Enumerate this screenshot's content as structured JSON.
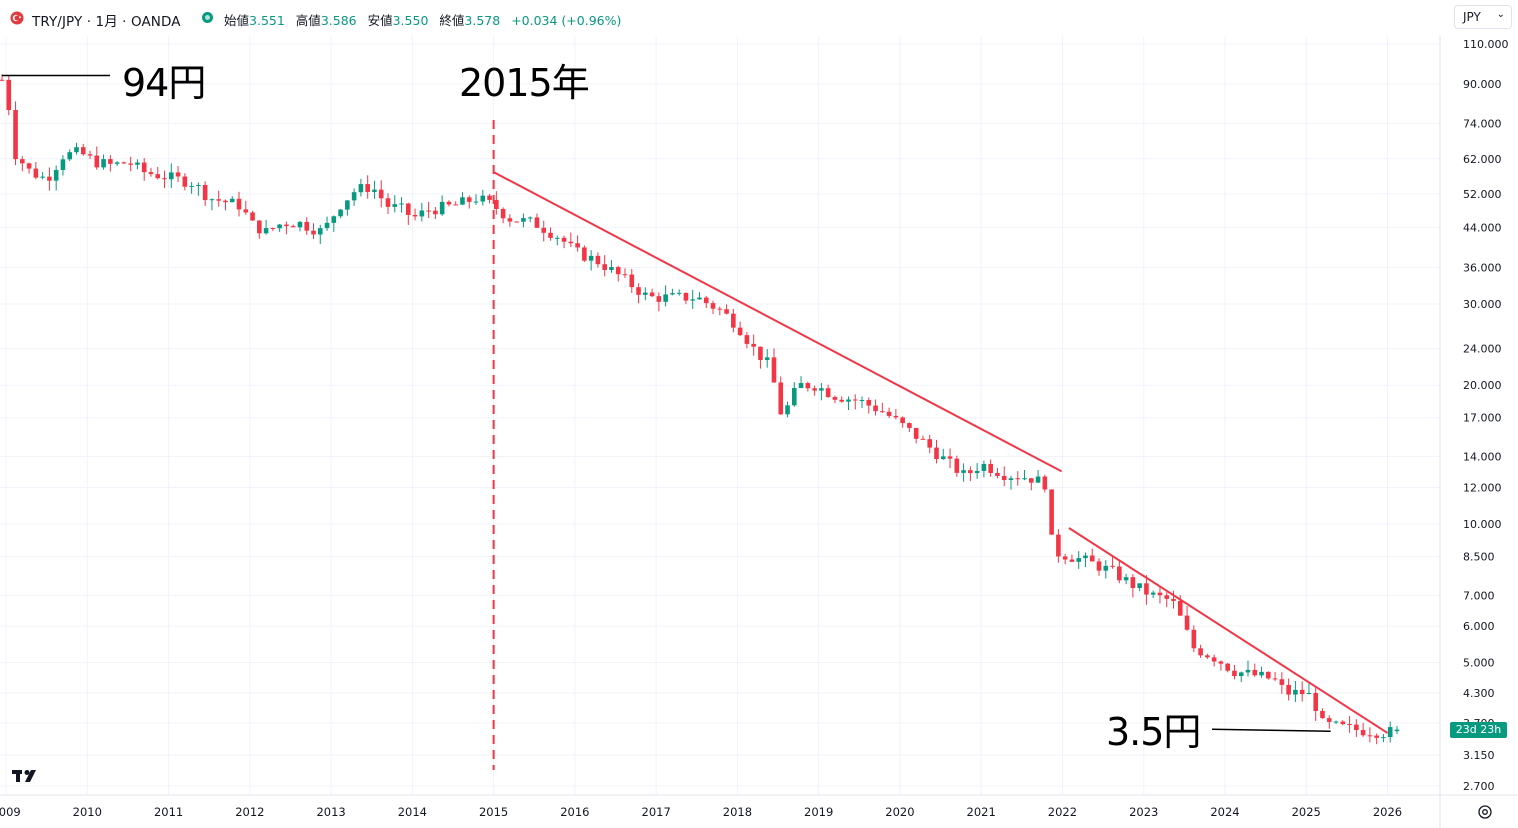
{
  "header": {
    "symbol_title": "TRY/JPY · 1月 · OANDA",
    "ohlc": [
      {
        "label": "始値",
        "value": "3.551"
      },
      {
        "label": "高値",
        "value": "3.586"
      },
      {
        "label": "安値",
        "value": "3.550"
      },
      {
        "label": "終値",
        "value": "3.578"
      },
      {
        "label": "",
        "value": "+0.034 (+0.96%)"
      }
    ]
  },
  "currency_select": {
    "value": "JPY",
    "chevron_icon": "chevron-down-icon"
  },
  "price_tag": "23d 23h",
  "annotations": {
    "start_price": "94円",
    "year_marker": "2015年",
    "end_price": "3.5円"
  },
  "colors": {
    "up": "#089981",
    "down": "#f23645",
    "trendline": "#f23645",
    "grid": "#f0f3fa",
    "axis_text": "#131722"
  },
  "chart_data": {
    "type": "candlestick",
    "title": "TRY/JPY · 1月 · OANDA",
    "y_scale": "log",
    "ylim": [
      2.4,
      120
    ],
    "xlim": [
      2008.95,
      2026.4
    ],
    "y_ticks": [
      "110.000",
      "90.000",
      "74.000",
      "62.000",
      "52.000",
      "44.000",
      "36.000",
      "30.000",
      "24.000",
      "20.000",
      "17.000",
      "14.000",
      "12.000",
      "10.000",
      "8.500",
      "7.000",
      "6.000",
      "5.000",
      "4.300",
      "3.700",
      "3.150",
      "2.700"
    ],
    "x_ticks": [
      "2009",
      "2010",
      "2011",
      "2012",
      "2013",
      "2014",
      "2015",
      "2016",
      "2017",
      "2018",
      "2019",
      "2020",
      "2021",
      "2022",
      "2023",
      "2024",
      "2025",
      "2026"
    ],
    "anchors": [
      [
        2008.95,
        92
      ],
      [
        2009.0,
        90
      ],
      [
        2009.1,
        64
      ],
      [
        2009.3,
        58
      ],
      [
        2009.5,
        56
      ],
      [
        2009.7,
        63
      ],
      [
        2009.9,
        64
      ],
      [
        2010.1,
        61
      ],
      [
        2010.3,
        60
      ],
      [
        2010.5,
        61
      ],
      [
        2010.7,
        58
      ],
      [
        2010.9,
        57
      ],
      [
        2011.1,
        56
      ],
      [
        2011.3,
        55
      ],
      [
        2011.5,
        51
      ],
      [
        2011.7,
        50
      ],
      [
        2011.9,
        49
      ],
      [
        2012.0,
        45
      ],
      [
        2012.2,
        43
      ],
      [
        2012.4,
        45
      ],
      [
        2012.6,
        45
      ],
      [
        2012.9,
        43
      ],
      [
        2013.1,
        49
      ],
      [
        2013.3,
        53
      ],
      [
        2013.5,
        54
      ],
      [
        2013.7,
        49
      ],
      [
        2013.9,
        48
      ],
      [
        2014.0,
        46
      ],
      [
        2014.2,
        48
      ],
      [
        2014.5,
        49
      ],
      [
        2014.8,
        51
      ],
      [
        2015.0,
        49
      ],
      [
        2015.2,
        46
      ],
      [
        2015.5,
        45
      ],
      [
        2015.8,
        42
      ],
      [
        2016.0,
        39
      ],
      [
        2016.3,
        37
      ],
      [
        2016.6,
        34
      ],
      [
        2016.9,
        31
      ],
      [
        2017.2,
        31
      ],
      [
        2017.5,
        31
      ],
      [
        2017.8,
        29
      ],
      [
        2018.0,
        27
      ],
      [
        2018.2,
        24
      ],
      [
        2018.4,
        22
      ],
      [
        2018.55,
        17
      ],
      [
        2018.75,
        20
      ],
      [
        2018.95,
        20
      ],
      [
        2019.2,
        19
      ],
      [
        2019.5,
        18.5
      ],
      [
        2019.8,
        17.5
      ],
      [
        2020.0,
        16.5
      ],
      [
        2020.2,
        15.5
      ],
      [
        2020.5,
        14
      ],
      [
        2020.8,
        12.7
      ],
      [
        2021.0,
        13.5
      ],
      [
        2021.3,
        12.8
      ],
      [
        2021.6,
        12.6
      ],
      [
        2021.8,
        12.2
      ],
      [
        2021.88,
        8.7
      ],
      [
        2022.0,
        8.6
      ],
      [
        2022.3,
        8.3
      ],
      [
        2022.6,
        7.9
      ],
      [
        2022.85,
        7.4
      ],
      [
        2023.1,
        7.0
      ],
      [
        2023.35,
        6.8
      ],
      [
        2023.5,
        6.0
      ],
      [
        2023.6,
        5.4
      ],
      [
        2023.9,
        5.1
      ],
      [
        2024.1,
        4.8
      ],
      [
        2024.35,
        4.7
      ],
      [
        2024.6,
        4.6
      ],
      [
        2024.75,
        4.3
      ],
      [
        2024.95,
        4.3
      ],
      [
        2025.1,
        4.2
      ],
      [
        2025.15,
        3.7
      ],
      [
        2025.3,
        3.65
      ],
      [
        2025.6,
        3.58
      ],
      [
        2025.8,
        3.55
      ],
      [
        2026.0,
        3.52
      ],
      [
        2026.1,
        3.578
      ]
    ],
    "trendlines": [
      {
        "from": [
          2015.0,
          58
        ],
        "to": [
          2021.99,
          13
        ]
      },
      {
        "from": [
          2022.08,
          9.8
        ],
        "to": [
          2026.0,
          3.52
        ]
      }
    ],
    "markers": [
      {
        "label": "94円",
        "x": 2008.95,
        "y": 94
      },
      {
        "label": "2015年",
        "x": 2015.0
      },
      {
        "label": "3.5円",
        "x": 2025.3,
        "y": 3.55
      }
    ]
  }
}
